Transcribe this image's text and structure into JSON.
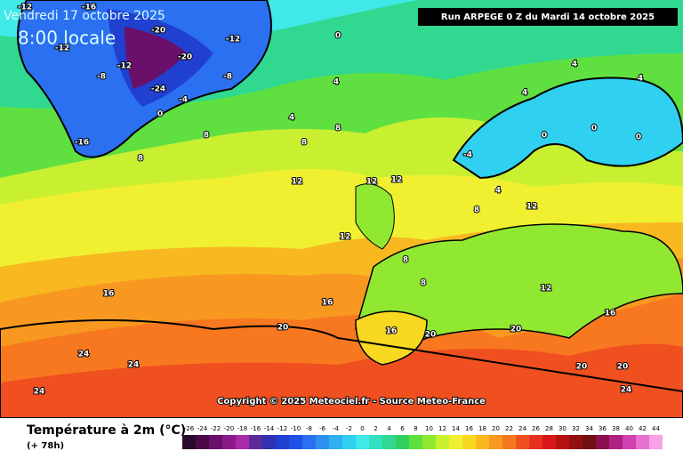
{
  "header": {
    "date": "Vendredi 17 octobre 2025",
    "time": "8:00 locale",
    "run": "Run ARPEGE 0 Z du Mardi 14 octobre 2025"
  },
  "copyright": "Copyright © 2025 Meteociel.fr - Source Meteo-France",
  "legend": {
    "title": "Température à 2m (°C)",
    "lead": "(+ 78h)",
    "values": [
      -26,
      -24,
      -22,
      -20,
      -18,
      -16,
      -14,
      -12,
      -10,
      -8,
      -6,
      -4,
      -2,
      0,
      2,
      4,
      6,
      8,
      10,
      12,
      14,
      16,
      18,
      20,
      22,
      24,
      26,
      28,
      30,
      32,
      34,
      36,
      38,
      40,
      42,
      44
    ],
    "colors": [
      "#2a0a2a",
      "#4a0a4a",
      "#6a106a",
      "#8a1a8a",
      "#aa2aaa",
      "#5a2a9a",
      "#3030b0",
      "#2040d0",
      "#2050e8",
      "#2a70f0",
      "#3090f0",
      "#30b0f0",
      "#30d0f0",
      "#40e8e8",
      "#30e0c0",
      "#30d890",
      "#30d060",
      "#60e040",
      "#90e830",
      "#c8f030",
      "#f0f030",
      "#f8d820",
      "#f8b820",
      "#f89820",
      "#f87820",
      "#f05020",
      "#e83020",
      "#d81818",
      "#b81010",
      "#901010",
      "#701010",
      "#8a1050",
      "#b02080",
      "#d040b0",
      "#e870d0",
      "#f8a0e8"
    ]
  },
  "map_labels": [
    -12,
    -16,
    -20,
    -12,
    -8,
    -12,
    -16,
    -20,
    -24,
    -12,
    -4,
    0,
    -8,
    0,
    4,
    4,
    8,
    8,
    8,
    8,
    12,
    12,
    12,
    12,
    8,
    4,
    4,
    4,
    0,
    0,
    -4,
    8,
    12,
    16,
    16,
    16,
    20,
    20,
    24,
    24,
    24,
    20,
    20,
    24,
    20,
    16,
    12,
    8,
    4,
    0
  ]
}
